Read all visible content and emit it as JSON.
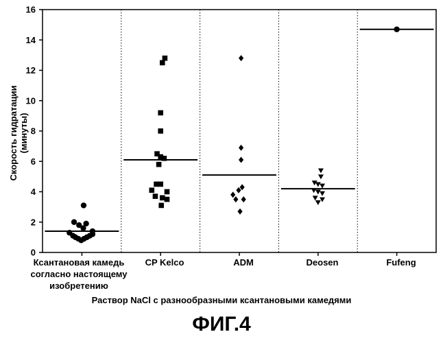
{
  "figure_title": "ФИГ.4",
  "chart_data": {
    "type": "scatter",
    "xlabel": "Раствор NaCl с разнообразными ксантановыми камедями",
    "ylabel": "Скорость гидратации (минуты)",
    "ylim": [
      0,
      16
    ],
    "yticks": [
      "0",
      "2",
      "4",
      "6",
      "8",
      "10",
      "12",
      "14",
      "16"
    ],
    "grid": "vertical dotted separators between groups",
    "categories": [
      "Ксантановая камедь согласно настоящему изобретению",
      "CP Kelco",
      "ADM",
      "Deosen",
      "Fufeng"
    ],
    "groups": [
      {
        "category": "Ксантановая камедь согласно настоящему изобретению",
        "marker": "circle",
        "median": 1.4,
        "points": [
          [
            -0.35,
            1.3
          ],
          [
            -0.25,
            1.1
          ],
          [
            -0.18,
            1.0
          ],
          [
            -0.1,
            0.9
          ],
          [
            -0.02,
            0.8
          ],
          [
            0.06,
            0.9
          ],
          [
            0.14,
            1.0
          ],
          [
            0.22,
            1.1
          ],
          [
            0.3,
            1.2
          ],
          [
            -0.22,
            2.0
          ],
          [
            -0.08,
            1.8
          ],
          [
            0.04,
            1.6
          ],
          [
            0.12,
            1.9
          ],
          [
            0.3,
            1.4
          ],
          [
            0.05,
            3.1
          ]
        ]
      },
      {
        "category": "CP Kelco",
        "marker": "square",
        "median": 6.1,
        "points": [
          [
            0.12,
            12.8
          ],
          [
            0.05,
            12.5
          ],
          [
            0.0,
            9.2
          ],
          [
            0.0,
            8.0
          ],
          [
            -0.1,
            6.5
          ],
          [
            0.0,
            6.3
          ],
          [
            0.1,
            6.2
          ],
          [
            -0.05,
            5.8
          ],
          [
            -0.12,
            4.5
          ],
          [
            0.0,
            4.5
          ],
          [
            -0.25,
            4.1
          ],
          [
            0.18,
            4.0
          ],
          [
            -0.15,
            3.7
          ],
          [
            0.05,
            3.6
          ],
          [
            0.18,
            3.5
          ],
          [
            0.02,
            3.1
          ]
        ]
      },
      {
        "category": "ADM",
        "marker": "diamond",
        "median": 5.1,
        "points": [
          [
            0.05,
            12.8
          ],
          [
            0.05,
            6.9
          ],
          [
            0.05,
            6.1
          ],
          [
            0.08,
            4.3
          ],
          [
            -0.02,
            4.1
          ],
          [
            -0.18,
            3.8
          ],
          [
            -0.1,
            3.5
          ],
          [
            0.12,
            3.5
          ],
          [
            0.02,
            2.7
          ]
        ]
      },
      {
        "category": "Deosen",
        "marker": "triangle-down",
        "median": 4.2,
        "points": [
          [
            0.08,
            5.4
          ],
          [
            0.08,
            5.0
          ],
          [
            -0.1,
            4.6
          ],
          [
            0.0,
            4.5
          ],
          [
            0.12,
            4.4
          ],
          [
            -0.12,
            4.1
          ],
          [
            0.0,
            4.0
          ],
          [
            0.12,
            3.9
          ],
          [
            -0.08,
            3.6
          ],
          [
            0.12,
            3.5
          ],
          [
            0.0,
            3.3
          ]
        ]
      },
      {
        "category": "Fufeng",
        "marker": "circle",
        "median": 14.7,
        "points": [
          [
            0.0,
            14.7
          ]
        ]
      }
    ]
  }
}
